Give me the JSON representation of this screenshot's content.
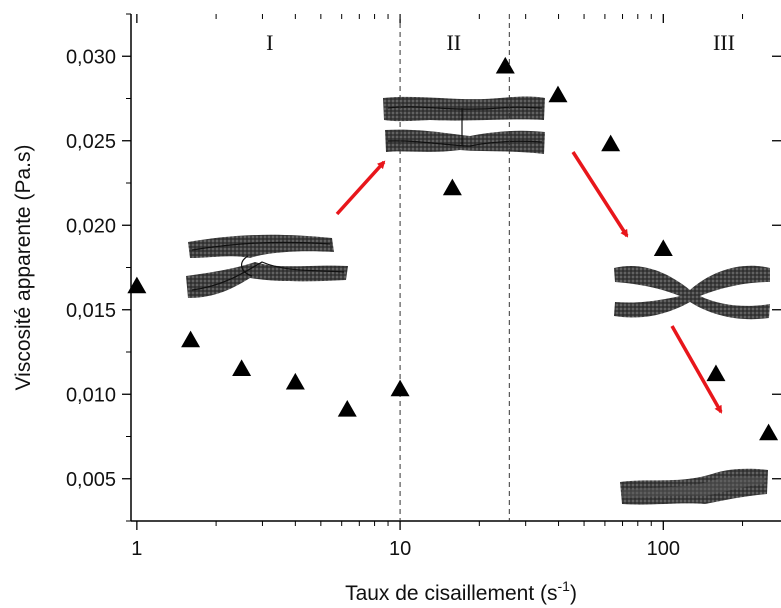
{
  "chart_data": {
    "type": "scatter",
    "xscale": "log",
    "xlim": [
      0.95,
      280
    ],
    "ylim": [
      0.0025,
      0.0325
    ],
    "xlabel_main": "Taux de cisaillement (s",
    "xlabel_sup": "-1",
    "xlabel_close": ")",
    "ylabel": "Viscosité apparente (Pa.s)",
    "x_ticks": [
      {
        "value": 1,
        "label": "1"
      },
      {
        "value": 10,
        "label": "10"
      },
      {
        "value": 100,
        "label": "100"
      }
    ],
    "y_ticks": [
      {
        "value": 0.005,
        "label": "0,005"
      },
      {
        "value": 0.01,
        "label": "0,010"
      },
      {
        "value": 0.015,
        "label": "0,015"
      },
      {
        "value": 0.02,
        "label": "0,020"
      },
      {
        "value": 0.025,
        "label": "0,025"
      },
      {
        "value": 0.03,
        "label": "0,030"
      }
    ],
    "points": [
      {
        "x": 1.0,
        "y": 0.0164
      },
      {
        "x": 1.6,
        "y": 0.0132
      },
      {
        "x": 2.5,
        "y": 0.0115
      },
      {
        "x": 4.0,
        "y": 0.0107
      },
      {
        "x": 6.3,
        "y": 0.0091
      },
      {
        "x": 10.0,
        "y": 0.0103
      },
      {
        "x": 15.8,
        "y": 0.0222
      },
      {
        "x": 25.1,
        "y": 0.0294
      },
      {
        "x": 39.8,
        "y": 0.0277
      },
      {
        "x": 63.1,
        "y": 0.0248
      },
      {
        "x": 100.0,
        "y": 0.0186
      },
      {
        "x": 158.5,
        "y": 0.0112
      },
      {
        "x": 251.2,
        "y": 0.0077
      }
    ],
    "region_boundaries": [
      10,
      26
    ],
    "regions": [
      {
        "label": "I",
        "x": 3.2
      },
      {
        "label": "II",
        "x": 16
      },
      {
        "label": "III",
        "x": 170
      }
    ],
    "marker": "filled-triangle",
    "marker_color": "#000000",
    "arrow_color": "#e8161b"
  }
}
